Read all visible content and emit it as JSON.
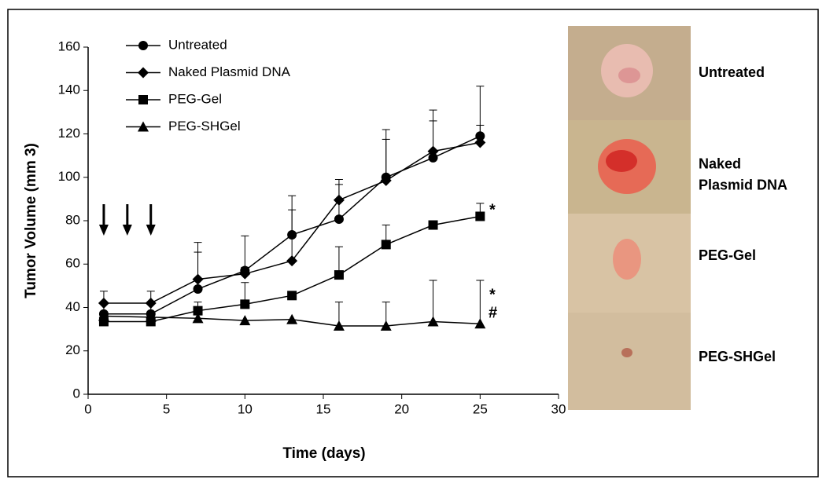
{
  "chart_data": {
    "type": "line",
    "x_label": "Time (days)",
    "y_label": "Tumor Volume (mm 3)",
    "x": [
      1,
      4,
      7,
      10,
      13,
      16,
      19,
      22,
      25
    ],
    "series": [
      {
        "name": "Untreated",
        "marker": "circle",
        "color": "#000000",
        "values": [
          37,
          37,
          48.5,
          57,
          73.5,
          80.7,
          100,
          109,
          119
        ],
        "errors": [
          5,
          5,
          17,
          16,
          11.5,
          16,
          22,
          17,
          23
        ]
      },
      {
        "name": "Naked Plasmid DNA",
        "marker": "diamond",
        "color": "#000000",
        "values": [
          42,
          42,
          53,
          55.5,
          61.5,
          89.5,
          98.5,
          112,
          116
        ],
        "errors": [
          5.5,
          5.5,
          17,
          3,
          30,
          9.5,
          19,
          19,
          8
        ]
      },
      {
        "name": "PEG-Gel",
        "marker": "square",
        "color": "#000000",
        "values": [
          33.5,
          33.5,
          38.5,
          41.5,
          45.5,
          55,
          69,
          78,
          82
        ],
        "errors": [
          null,
          null,
          4,
          10,
          null,
          13,
          9,
          null,
          6
        ]
      },
      {
        "name": "PEG-SHGel",
        "marker": "triangle",
        "color": "#000000",
        "values": [
          36,
          35.5,
          35,
          34,
          34.5,
          31.5,
          31.5,
          33.5,
          32.5
        ],
        "errors": [
          null,
          null,
          null,
          null,
          null,
          11,
          11,
          19,
          20
        ]
      }
    ],
    "dosing_days": [
      1,
      2.5,
      4
    ],
    "annotations": [
      "*",
      "*",
      "#"
    ],
    "xlim": [
      0,
      30
    ],
    "xticks": [
      0,
      5,
      10,
      15,
      20,
      25,
      30
    ],
    "ylim": [
      0,
      160
    ],
    "yticks": [
      0,
      20,
      40,
      60,
      80,
      100,
      120,
      140,
      160
    ]
  },
  "photo_panel": {
    "labels": [
      [
        "Untreated"
      ],
      [
        "Naked",
        "Plasmid DNA"
      ],
      [
        "PEG-Gel"
      ],
      [
        "PEG-SHGel"
      ]
    ]
  }
}
